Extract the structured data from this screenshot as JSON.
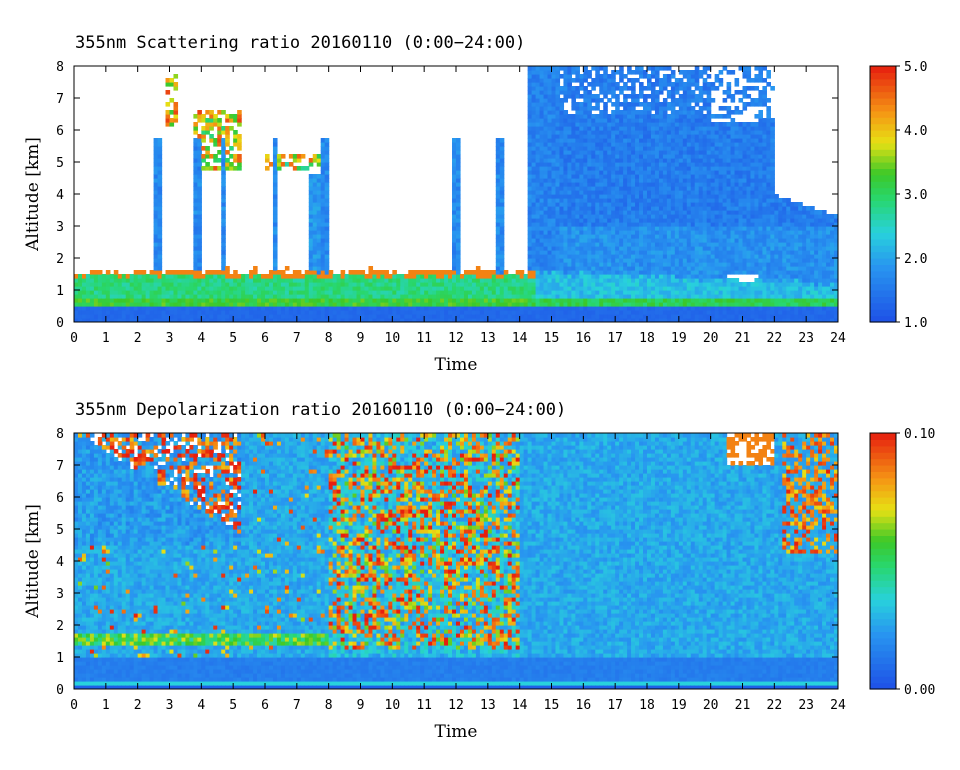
{
  "chart_data": [
    {
      "type": "heatmap",
      "title": "355nm Scattering ratio  20160110 (0:00−24:00)",
      "xlabel": "Time",
      "ylabel": "Altitude [km]",
      "xlim": [
        0,
        24
      ],
      "ylim": [
        0,
        8
      ],
      "xticks": [
        "0",
        "1",
        "2",
        "3",
        "4",
        "5",
        "6",
        "7",
        "8",
        "9",
        "10",
        "11",
        "12",
        "13",
        "14",
        "15",
        "16",
        "17",
        "18",
        "19",
        "20",
        "21",
        "22",
        "23",
        "24"
      ],
      "yticks": [
        "0",
        "1",
        "2",
        "3",
        "4",
        "5",
        "6",
        "7",
        "8"
      ],
      "colorbar": {
        "min": 1.0,
        "max": 5.0,
        "ticks": [
          "1.0",
          "2.0",
          "3.0",
          "4.0",
          "5.0"
        ]
      },
      "colors": {
        "low": "#1e50e6",
        "high": "#e61e0f",
        "missing": "#ffffff"
      },
      "features": {
        "boundary_layer_top_km": 1.6,
        "dense_cloud_start_hr": 15.2,
        "aerosol_layer_top_km_end": 3.3
      }
    },
    {
      "type": "heatmap",
      "title": "355nm Depolarization ratio  20160110 (0:00−24:00)",
      "xlabel": "Time",
      "ylabel": "Altitude [km]",
      "xlim": [
        0,
        24
      ],
      "ylim": [
        0,
        8
      ],
      "xticks": [
        "0",
        "1",
        "2",
        "3",
        "4",
        "5",
        "6",
        "7",
        "8",
        "9",
        "10",
        "11",
        "12",
        "13",
        "14",
        "15",
        "16",
        "17",
        "18",
        "19",
        "20",
        "21",
        "22",
        "23",
        "24"
      ],
      "yticks": [
        "0",
        "1",
        "2",
        "3",
        "4",
        "5",
        "6",
        "7",
        "8"
      ],
      "colorbar": {
        "min": 0.0,
        "max": 0.1,
        "ticks": [
          "0.00",
          "0.10"
        ]
      },
      "colors": {
        "low": "#1e50e6",
        "high": "#e61e0f",
        "missing": "#ffffff"
      },
      "features": {
        "noisy_band_hr": [
          8,
          14
        ],
        "layer_km": 1.6
      }
    }
  ]
}
